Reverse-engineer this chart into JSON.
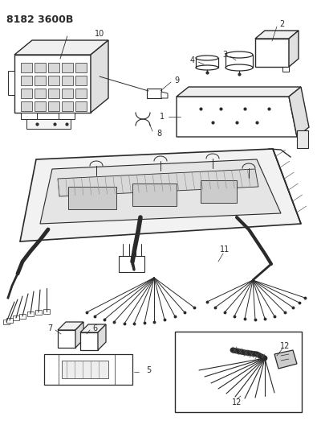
{
  "title": "8182 3600B",
  "background_color": "#ffffff",
  "line_color": "#2a2a2a",
  "figsize": [
    4.0,
    5.33
  ],
  "dpi": 100
}
